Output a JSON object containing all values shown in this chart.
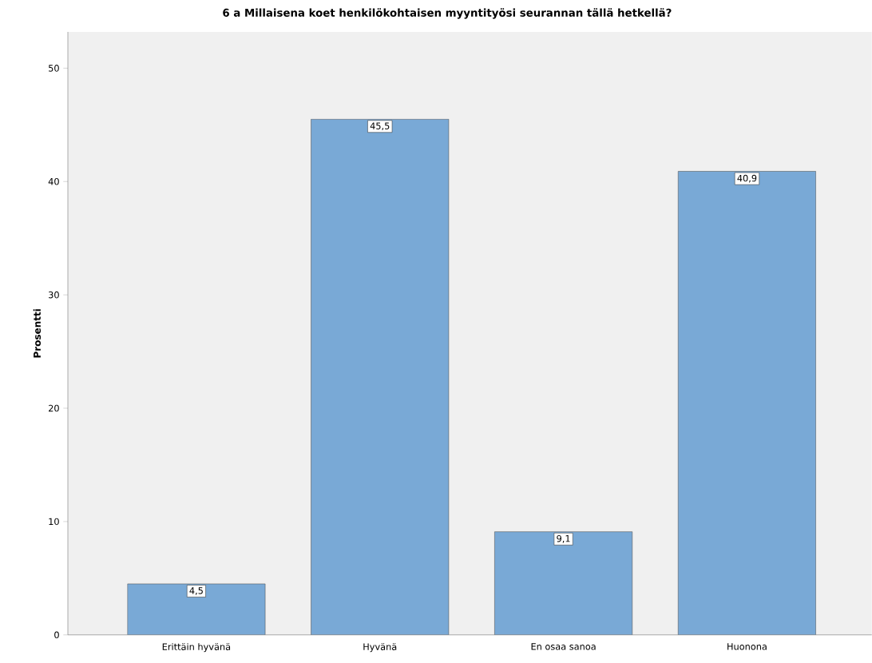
{
  "chart_data": {
    "type": "bar",
    "title": "6 a Millaisena koet henkilökohtaisen myyntityösi seurannan tällä hetkellä?",
    "ylabel": "Prosentti",
    "categories": [
      "Erittäin hyvänä",
      "Hyvänä",
      "En osaa sanoa",
      "Huonona"
    ],
    "values": [
      4.5,
      45.5,
      9.1,
      40.9
    ],
    "value_labels": [
      "4,5",
      "45,5",
      "9,1",
      "40,9"
    ],
    "color": "#79a9d6",
    "ylim": [
      0,
      53.2
    ],
    "yticks": [
      0,
      10,
      20,
      30,
      40,
      50
    ]
  }
}
